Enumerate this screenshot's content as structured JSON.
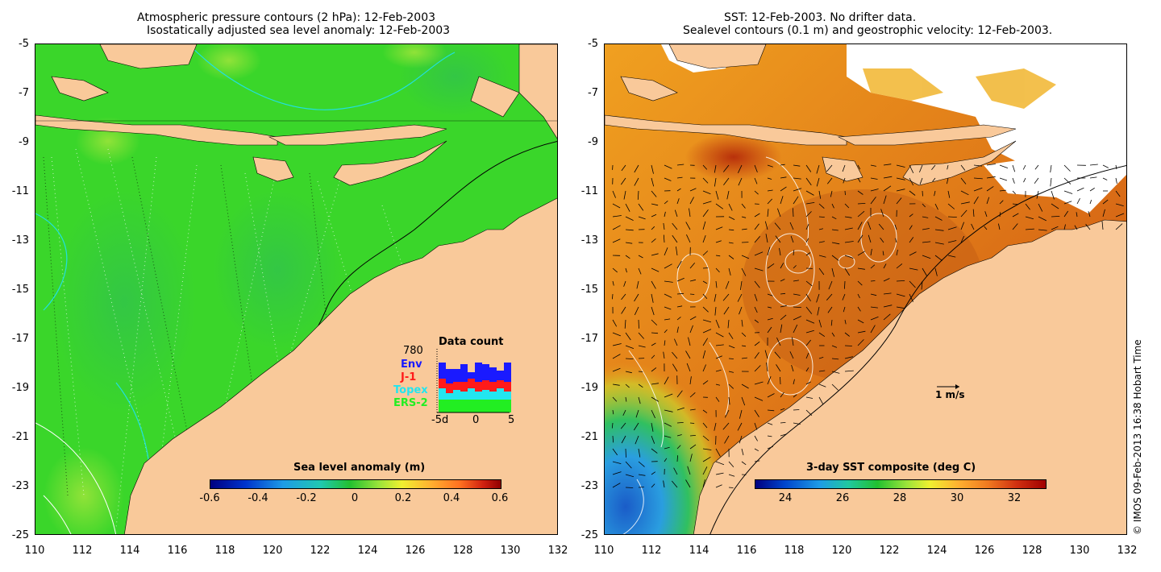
{
  "left_panel": {
    "title_line1": "Atmospheric pressure contours (2 hPa): 12-Feb-2003",
    "title_line2": "Isostatically adjusted sea level anomaly: 12-Feb-2003",
    "colorbar_label": "Sea level anomaly (m)",
    "colorbar_ticks": [
      "-0.6",
      "-0.4",
      "-0.2",
      "0",
      "0.2",
      "0.4",
      "0.6"
    ],
    "data_count": {
      "title": "Data count",
      "count": "780",
      "series": [
        {
          "name": "Env",
          "color": "#1a1aff"
        },
        {
          "name": "J-1",
          "color": "#ff1a1a"
        },
        {
          "name": "Topex",
          "color": "#22e6f0"
        },
        {
          "name": "ERS-2",
          "color": "#22ee22"
        }
      ],
      "axis_labels": [
        "-5d",
        "0",
        "5"
      ]
    }
  },
  "right_panel": {
    "title_line1": "SST: 12-Feb-2003. No drifter data.",
    "title_line2": "Sealevel contours (0.1 m) and geostrophic velocity: 12-Feb-2003.",
    "colorbar_label": "3-day SST composite (deg C)",
    "colorbar_ticks": [
      "24",
      "26",
      "28",
      "30",
      "32"
    ],
    "velocity_scale": "1 m/s"
  },
  "axes": {
    "y_ticks": [
      "-5",
      "-7",
      "-9",
      "-11",
      "-13",
      "-15",
      "-17",
      "-19",
      "-21",
      "-23",
      "-25"
    ],
    "x_ticks": [
      "110",
      "112",
      "114",
      "116",
      "118",
      "120",
      "122",
      "124",
      "126",
      "128",
      "130",
      "132"
    ]
  },
  "credit": "© IMOS 09-Feb-2013 16:38 Hobart Time",
  "colors": {
    "land": "#f9c99a",
    "ocean_sla": "#38d62c",
    "ocean_sst": "#e8861c",
    "warm_coast": "#b8180c",
    "cold_southwest": "#2a7ed8"
  }
}
